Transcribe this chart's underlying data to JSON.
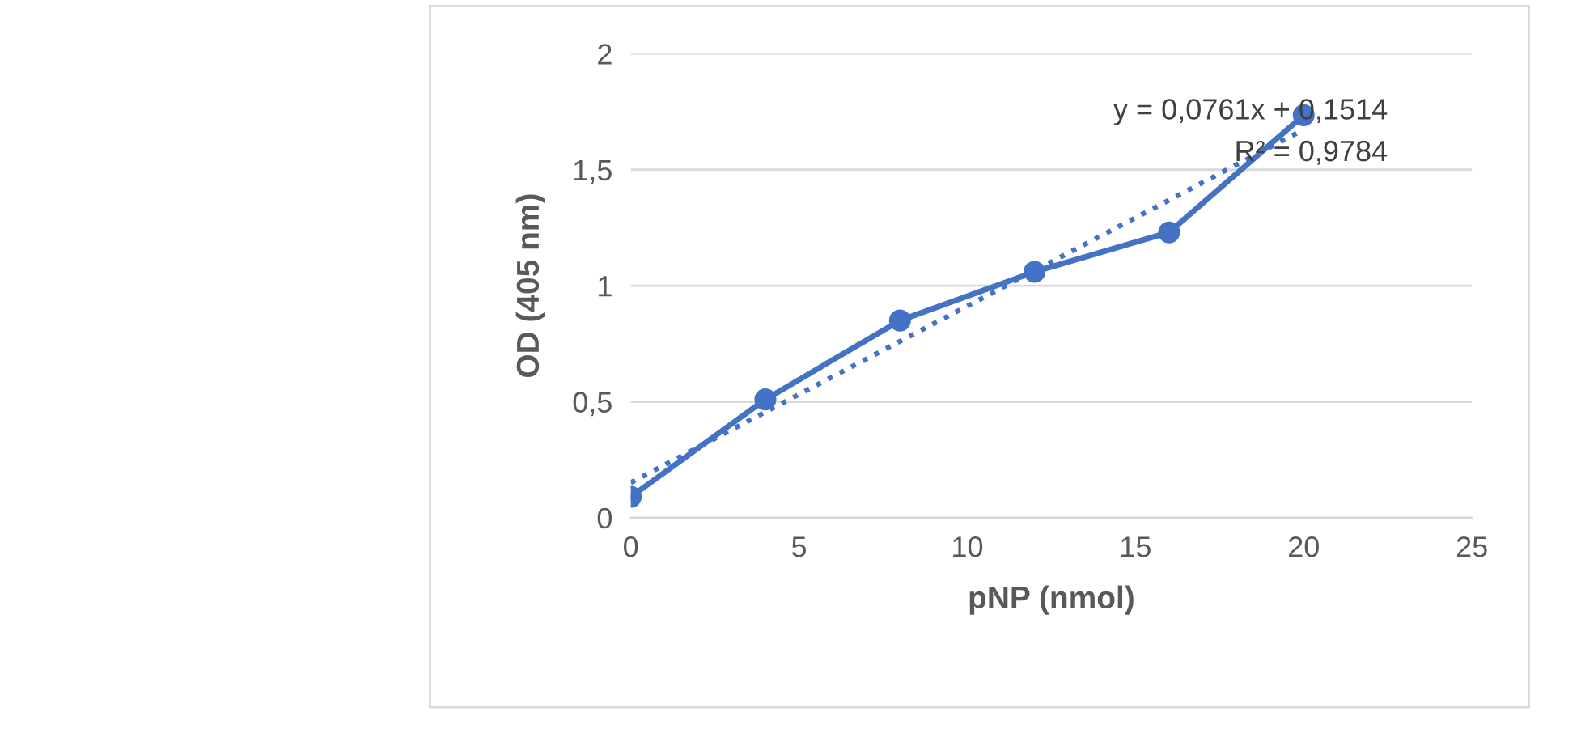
{
  "chart_data": {
    "type": "line",
    "xlabel": "pNP (nmol)",
    "ylabel": "OD (405 nm)",
    "xlim": [
      0,
      25
    ],
    "xticks": [
      0,
      5,
      10,
      15,
      20,
      25
    ],
    "ylim": [
      0,
      2
    ],
    "yticks": [
      0,
      {
        "value": 0.5,
        "label": "0,5"
      },
      1,
      {
        "value": 1.5,
        "label": "1,5"
      },
      2
    ],
    "grid": "y",
    "marker": "circle",
    "line_style": "solid",
    "series": [
      {
        "color": "#4472c4",
        "x": [
          0,
          4,
          8,
          12,
          16,
          20
        ],
        "values": [
          0.09,
          0.51,
          0.85,
          1.06,
          1.23,
          1.735
        ]
      },
      {
        "color": "#4472c4",
        "x": [
          0,
          20
        ],
        "values": [
          0.1514,
          1.6734
        ],
        "marker": "none",
        "line_style": "dotted"
      }
    ],
    "annotations": [
      "y = 0,0761x + 0,1514",
      "R² = 0,9784"
    ]
  }
}
